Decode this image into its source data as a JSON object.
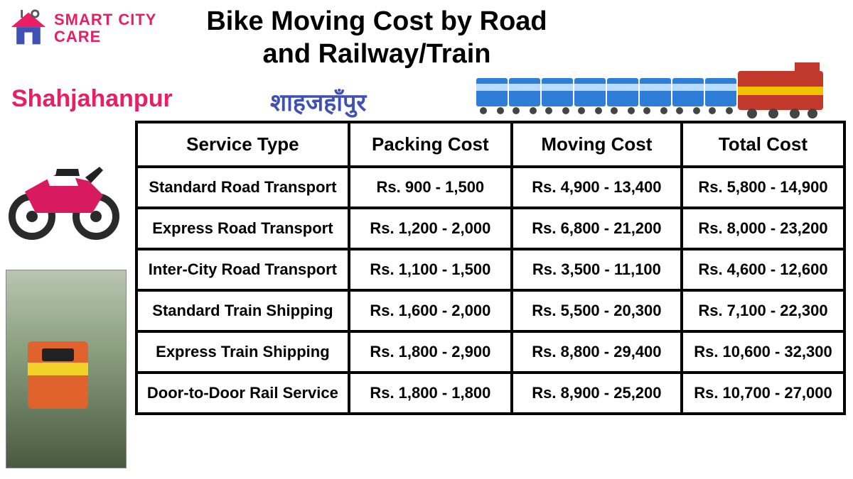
{
  "logo": {
    "line1": "SMART CITY",
    "line2": "CARE",
    "color": "#e91e63",
    "house_roof": "#e91e63",
    "house_body": "#3f51b5",
    "tools": "#555555"
  },
  "title": "Bike Moving Cost by Road and Railway/Train",
  "city_en": {
    "text": "Shahjahanpur",
    "color": "#e91e63"
  },
  "city_hi": {
    "text": "शाहजहाँपुर",
    "color": "#3f51b5"
  },
  "train_top": {
    "coach_color": "#2e7dd7",
    "coach_stripe": "#b8dcff",
    "loco_color": "#c1392b",
    "loco_stripe": "#f2c200",
    "wheel_color": "#444444",
    "coach_count": 8
  },
  "bike": {
    "body": "#d81b60",
    "wheel": "#2a2a2a",
    "seat": "#222222",
    "accent": "#ffffff"
  },
  "table": {
    "columns": [
      "Service Type",
      "Packing Cost",
      "Moving Cost",
      "Total Cost"
    ],
    "rows": [
      [
        "Standard Road Transport",
        "Rs. 900 - 1,500",
        "Rs. 4,900 - 13,400",
        "Rs. 5,800 - 14,900"
      ],
      [
        "Express Road Transport",
        "Rs. 1,200 - 2,000",
        "Rs. 6,800 - 21,200",
        "Rs. 8,000 - 23,200"
      ],
      [
        "Inter-City Road Transport",
        "Rs. 1,100 - 1,500",
        "Rs. 3,500 - 11,100",
        "Rs. 4,600 - 12,600"
      ],
      [
        "Standard Train Shipping",
        "Rs. 1,600 - 2,000",
        "Rs. 5,500 - 20,300",
        "Rs. 7,100 - 22,300"
      ],
      [
        "Express Train Shipping",
        "Rs. 1,800 - 2,900",
        "Rs. 8,800 - 29,400",
        "Rs. 10,600 - 32,300"
      ],
      [
        "Door-to-Door Rail Service",
        "Rs. 1,800 - 1,800",
        "Rs. 8,900 - 25,200",
        "Rs. 10,700 - 27,000"
      ]
    ],
    "header_fontsize": 26,
    "cell_fontsize": 22,
    "border_color": "#000000"
  }
}
